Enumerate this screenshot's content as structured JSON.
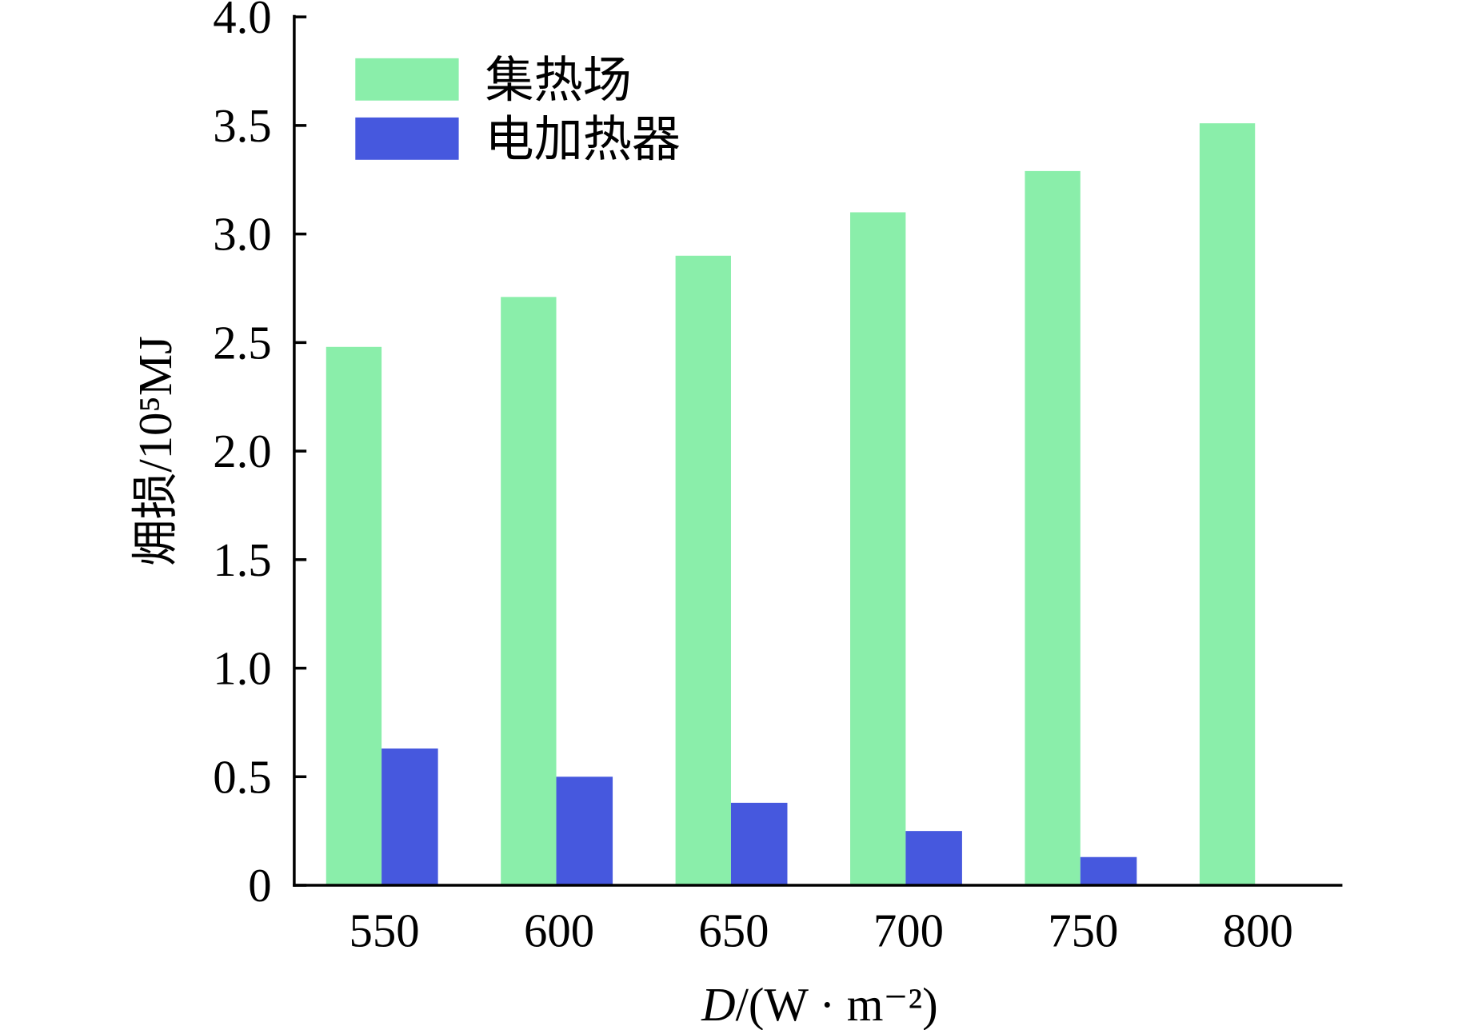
{
  "chart_data": {
    "type": "bar",
    "categories": [
      "550",
      "600",
      "650",
      "700",
      "750",
      "800"
    ],
    "series": [
      {
        "name": "集热场",
        "values": [
          2.48,
          2.71,
          2.9,
          3.1,
          3.29,
          3.51
        ],
        "color": "#8AEEAA"
      },
      {
        "name": "电加热器",
        "values": [
          0.63,
          0.5,
          0.38,
          0.25,
          0.13,
          0
        ],
        "color": "#4658DE"
      }
    ],
    "xlabel": "D/(W · m⁻²)",
    "ylabel": "㶲损/10⁵MJ",
    "ylim": [
      0,
      4.0
    ],
    "yticks": [
      "0",
      "0.5",
      "1.0",
      "1.5",
      "2.0",
      "2.5",
      "3.0",
      "3.5",
      "4.0"
    ],
    "legend": "top-left",
    "grid": false
  }
}
